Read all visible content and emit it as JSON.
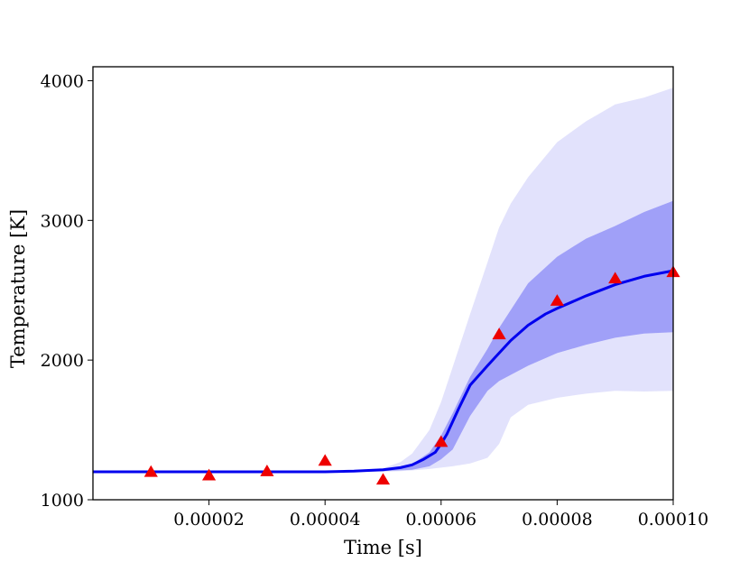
{
  "chart_data": {
    "type": "line",
    "title": "",
    "xlabel": "Time [s]",
    "ylabel": "Temperature [K]",
    "xlim": [
      0.0,
      0.0001
    ],
    "ylim": [
      1000,
      4100
    ],
    "grid": false,
    "x_ticks": [
      2e-05,
      4e-05,
      6e-05,
      8e-05,
      0.0001
    ],
    "x_tick_labels": [
      "0.00002",
      "0.00004",
      "0.00006",
      "0.00008",
      "0.00010"
    ],
    "y_ticks": [
      1000,
      2000,
      3000,
      4000
    ],
    "y_tick_labels": [
      "1000",
      "2000",
      "3000",
      "4000"
    ],
    "colors": {
      "mean_line": "#0000ee",
      "inner_band": "#a0a0f8",
      "outer_band": "#e2e2fc",
      "markers": "#ee0000"
    },
    "mean": {
      "x": [
        0.0,
        1e-05,
        2e-05,
        3e-05,
        4e-05,
        4.5e-05,
        5e-05,
        5.3e-05,
        5.5e-05,
        5.7e-05,
        5.9e-05,
        6e-05,
        6.1e-05,
        6.3e-05,
        6.5e-05,
        6.8e-05,
        7e-05,
        7.2e-05,
        7.5e-05,
        7.8e-05,
        8e-05,
        8.5e-05,
        9e-05,
        9.5e-05,
        0.0001
      ],
      "y": [
        1200,
        1200,
        1200,
        1200,
        1200,
        1205,
        1215,
        1230,
        1250,
        1290,
        1340,
        1400,
        1470,
        1650,
        1820,
        1960,
        2050,
        2140,
        2250,
        2330,
        2370,
        2460,
        2540,
        2600,
        2640
      ]
    },
    "inner_band": {
      "x": [
        0.0,
        4e-05,
        5e-05,
        5.5e-05,
        5.8e-05,
        6e-05,
        6.2e-05,
        6.5e-05,
        6.8e-05,
        7e-05,
        7.5e-05,
        8e-05,
        8.5e-05,
        9e-05,
        9.5e-05,
        0.0001
      ],
      "lower": [
        1200,
        1200,
        1205,
        1215,
        1240,
        1290,
        1360,
        1600,
        1780,
        1850,
        1960,
        2050,
        2110,
        2160,
        2190,
        2200
      ],
      "upper": [
        1200,
        1200,
        1215,
        1255,
        1340,
        1460,
        1620,
        1880,
        2080,
        2230,
        2550,
        2740,
        2870,
        2960,
        3060,
        3140
      ]
    },
    "outer_band": {
      "x": [
        0.0,
        4e-05,
        5e-05,
        5.3e-05,
        5.5e-05,
        5.8e-05,
        6e-05,
        6.2e-05,
        6.5e-05,
        6.8e-05,
        7e-05,
        7.2e-05,
        7.5e-05,
        8e-05,
        8.5e-05,
        9e-05,
        9.5e-05,
        0.0001
      ],
      "lower": [
        1200,
        1200,
        1200,
        1205,
        1210,
        1220,
        1230,
        1240,
        1260,
        1300,
        1400,
        1590,
        1680,
        1730,
        1760,
        1780,
        1775,
        1780
      ],
      "upper": [
        1200,
        1200,
        1225,
        1270,
        1330,
        1500,
        1700,
        1950,
        2330,
        2700,
        2950,
        3120,
        3310,
        3560,
        3710,
        3830,
        3880,
        3950
      ]
    },
    "observations": {
      "marker": "triangle",
      "x": [
        1e-05,
        2e-05,
        3e-05,
        4e-05,
        5e-05,
        6e-05,
        7e-05,
        8e-05,
        9e-05,
        0.0001
      ],
      "y": [
        1195,
        1170,
        1200,
        1275,
        1140,
        1410,
        2180,
        2420,
        2580,
        2625
      ]
    }
  }
}
